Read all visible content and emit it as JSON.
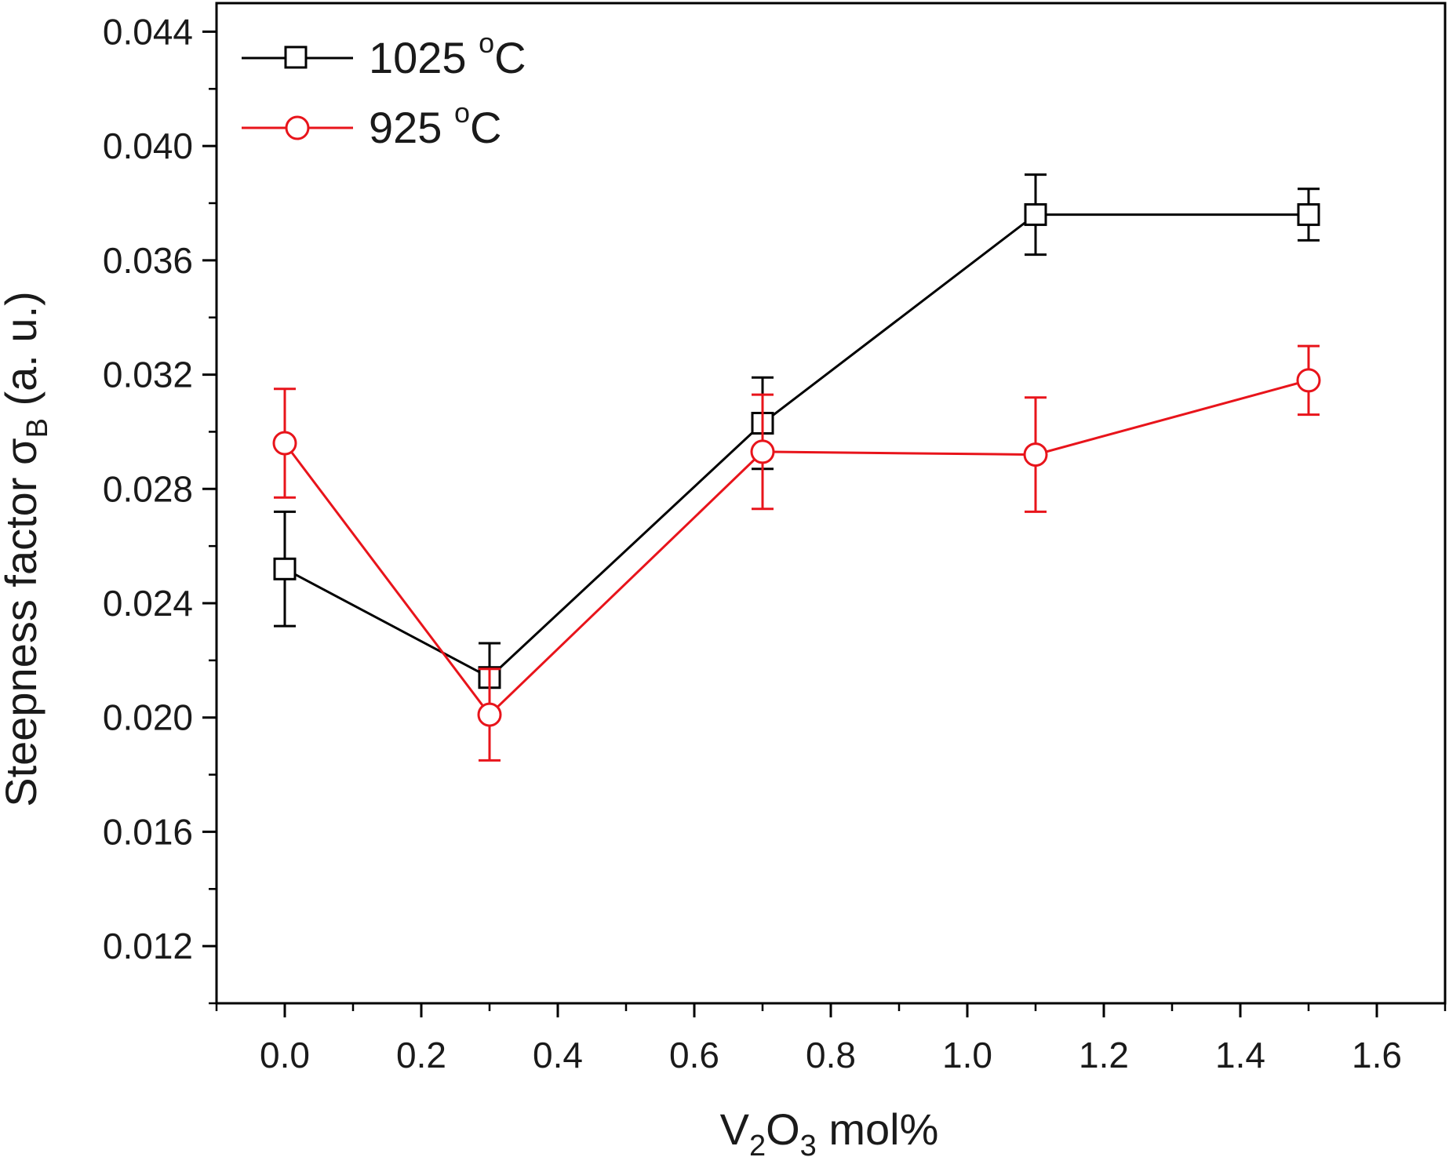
{
  "chart_data": {
    "type": "line",
    "title": "",
    "xlabel": {
      "base": "V",
      "sub1": "2",
      "mid": "O",
      "sub2": "3",
      "tail": " mol%"
    },
    "ylabel": {
      "main": "Steepness factor σ",
      "sub": "B",
      "tail": " (a. u.)"
    },
    "xlim": [
      -0.1,
      1.7
    ],
    "ylim": [
      0.01,
      0.045
    ],
    "x_ticks": [
      "0.0",
      "0.2",
      "0.4",
      "0.6",
      "0.8",
      "1.0",
      "1.2",
      "1.4",
      "1.6"
    ],
    "y_ticks": [
      "0.012",
      "0.016",
      "0.020",
      "0.024",
      "0.028",
      "0.032",
      "0.036",
      "0.040",
      "0.044"
    ],
    "legend_position": "top-left",
    "series": [
      {
        "name": "1025 °C",
        "label_value": "1025 ",
        "label_unit_sup": "o",
        "label_unit": "C",
        "color": "#000000",
        "marker": "square",
        "x": [
          0.0,
          0.3,
          0.7,
          1.1,
          1.5
        ],
        "y": [
          0.0252,
          0.0214,
          0.0303,
          0.0376,
          0.0376
        ],
        "err": [
          0.002,
          0.0012,
          0.0016,
          0.0014,
          0.0009
        ]
      },
      {
        "name": "925 °C",
        "label_value": "925 ",
        "label_unit_sup": "o",
        "label_unit": "C",
        "color": "#e8141b",
        "marker": "circle",
        "x": [
          0.0,
          0.3,
          0.7,
          1.1,
          1.5
        ],
        "y": [
          0.0296,
          0.0201,
          0.0293,
          0.0292,
          0.0318
        ],
        "err": [
          0.0019,
          0.0016,
          0.002,
          0.002,
          0.0012
        ]
      }
    ]
  }
}
